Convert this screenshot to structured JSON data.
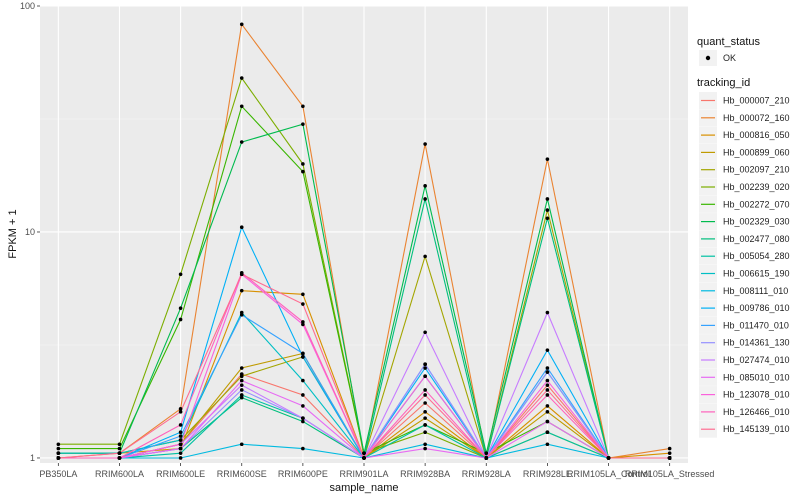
{
  "chart_data": {
    "type": "line",
    "xlabel": "sample_name",
    "ylabel": "FPKM + 1",
    "yscale": "log10",
    "ylim": [
      0.95,
      100
    ],
    "yticks": [
      1,
      10,
      100
    ],
    "ytick_labels": [
      "1",
      "10",
      "100"
    ],
    "grid": true,
    "legend_position": "right",
    "categories": [
      "PB350LA",
      "RRIM600LA",
      "RRIM600LE",
      "RRIM600SE",
      "RRIM600PE",
      "RRIM901LA",
      "RRIM928BA",
      "RRIM928LA",
      "RRIM928LE",
      "RRIM105LA_Control",
      "RRIM105LA_Stressed"
    ],
    "marker_legend": {
      "title": "quant_status",
      "items": [
        "OK"
      ]
    },
    "color_legend_title": "tracking_id",
    "series": [
      {
        "name": "Hb_000007_210",
        "color": "#F8766D",
        "values": [
          1.0,
          1.0,
          1.15,
          2.35,
          1.9,
          1.0,
          1.75,
          1.0,
          2.1,
          1.0,
          1.0
        ]
      },
      {
        "name": "Hb_000072_160",
        "color": "#EA8331",
        "values": [
          1.0,
          1.05,
          1.65,
          83.0,
          36.0,
          1.0,
          24.5,
          1.0,
          21.0,
          1.0,
          1.1
        ]
      },
      {
        "name": "Hb_000816_050",
        "color": "#D89000",
        "values": [
          1.05,
          1.05,
          1.1,
          5.5,
          5.3,
          1.0,
          1.6,
          1.0,
          1.7,
          1.0,
          1.05
        ]
      },
      {
        "name": "Hb_000899_060",
        "color": "#C09B00",
        "values": [
          1.0,
          1.0,
          1.15,
          2.5,
          2.9,
          1.0,
          1.5,
          1.0,
          1.6,
          1.0,
          1.0
        ]
      },
      {
        "name": "Hb_002097_210",
        "color": "#A3A500",
        "values": [
          1.05,
          1.05,
          1.2,
          2.3,
          2.8,
          1.0,
          7.8,
          1.0,
          12.5,
          1.0,
          1.0
        ]
      },
      {
        "name": "Hb_002239_020",
        "color": "#7CAE00",
        "values": [
          1.15,
          1.15,
          6.5,
          48.0,
          20.0,
          1.05,
          1.3,
          1.0,
          1.3,
          1.0,
          1.0
        ]
      },
      {
        "name": "Hb_002272_070",
        "color": "#39B600",
        "values": [
          1.1,
          1.1,
          4.1,
          36.0,
          18.5,
          1.05,
          1.4,
          1.05,
          1.45,
          1.0,
          1.0
        ]
      },
      {
        "name": "Hb_002329_030",
        "color": "#00BB4E",
        "values": [
          1.05,
          1.05,
          4.6,
          25.0,
          30.0,
          1.05,
          16.0,
          1.05,
          14.0,
          1.0,
          1.0
        ]
      },
      {
        "name": "Hb_002477_080",
        "color": "#00BF7D",
        "values": [
          1.0,
          1.0,
          1.1,
          1.85,
          1.45,
          1.0,
          14.0,
          1.0,
          11.5,
          1.0,
          1.0
        ]
      },
      {
        "name": "Hb_005054_280",
        "color": "#00C1A3",
        "values": [
          1.0,
          1.0,
          1.05,
          1.9,
          1.5,
          1.0,
          1.4,
          1.0,
          1.3,
          1.0,
          1.0
        ]
      },
      {
        "name": "Hb_006615_190",
        "color": "#00BFC4",
        "values": [
          1.05,
          1.05,
          1.2,
          4.4,
          2.2,
          1.0,
          2.3,
          1.0,
          2.4,
          1.0,
          1.0
        ]
      },
      {
        "name": "Hb_008111_010",
        "color": "#00BAE0",
        "values": [
          1.0,
          1.0,
          1.0,
          1.15,
          1.1,
          1.0,
          1.15,
          1.0,
          1.15,
          1.0,
          1.0
        ]
      },
      {
        "name": "Hb_009786_010",
        "color": "#00B0F6",
        "values": [
          1.0,
          1.0,
          1.3,
          10.5,
          2.8,
          1.0,
          2.5,
          1.0,
          3.0,
          1.0,
          1.0
        ]
      },
      {
        "name": "Hb_011470_010",
        "color": "#35A2FF",
        "values": [
          1.0,
          1.0,
          1.25,
          4.3,
          2.9,
          1.0,
          2.6,
          1.0,
          2.5,
          1.0,
          1.0
        ]
      },
      {
        "name": "Hb_014361_130",
        "color": "#9590FF",
        "values": [
          1.0,
          1.0,
          1.1,
          2.0,
          1.5,
          1.0,
          2.6,
          1.0,
          2.4,
          1.0,
          1.0
        ]
      },
      {
        "name": "Hb_027474_010",
        "color": "#C77CFF",
        "values": [
          1.0,
          1.0,
          1.15,
          2.1,
          1.5,
          1.0,
          3.6,
          1.0,
          4.4,
          1.0,
          1.0
        ]
      },
      {
        "name": "Hb_085010_010",
        "color": "#E76BF3",
        "values": [
          1.0,
          1.0,
          1.1,
          2.2,
          1.7,
          1.0,
          1.1,
          1.0,
          1.45,
          1.0,
          1.0
        ]
      },
      {
        "name": "Hb_123078_010",
        "color": "#FA62DB",
        "values": [
          1.0,
          1.0,
          1.15,
          6.5,
          3.9,
          1.0,
          2.3,
          1.0,
          2.2,
          1.0,
          1.0
        ]
      },
      {
        "name": "Hb_126466_010",
        "color": "#FF62BC",
        "values": [
          1.0,
          1.0,
          1.4,
          6.6,
          4.0,
          1.0,
          2.0,
          1.0,
          1.9,
          1.0,
          1.0
        ]
      },
      {
        "name": "Hb_145139_010",
        "color": "#FF6C91",
        "values": [
          1.0,
          1.05,
          1.6,
          6.5,
          4.8,
          1.0,
          1.9,
          1.0,
          2.0,
          1.0,
          1.0
        ]
      }
    ]
  }
}
